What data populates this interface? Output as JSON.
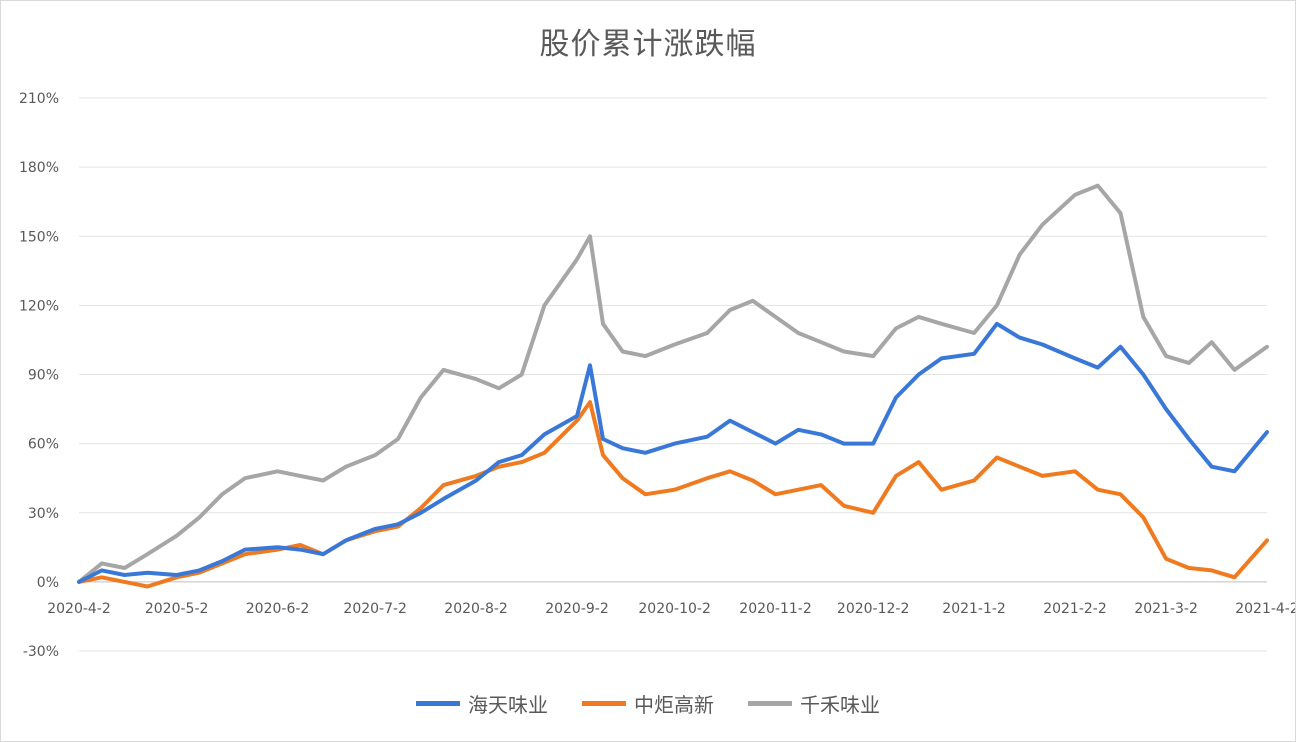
{
  "chart_data": {
    "type": "line",
    "title": "股价累计涨跌幅",
    "xlabel": "",
    "ylabel": "",
    "ylim": [
      -30,
      210
    ],
    "y_ticks": [
      "-30%",
      "0%",
      "30%",
      "60%",
      "90%",
      "120%",
      "150%",
      "180%",
      "210%"
    ],
    "y_tick_values": [
      -30,
      0,
      30,
      60,
      90,
      120,
      150,
      180,
      210
    ],
    "x_ticks": [
      "2020-4-2",
      "2020-5-2",
      "2020-6-2",
      "2020-7-2",
      "2020-8-2",
      "2020-9-2",
      "2020-10-2",
      "2020-11-2",
      "2020-12-2",
      "2021-1-2",
      "2021-2-2",
      "2021-3-2",
      "2021-4-2"
    ],
    "x": [
      "2020-4-2",
      "2020-4-9",
      "2020-4-16",
      "2020-4-23",
      "2020-5-2",
      "2020-5-9",
      "2020-5-16",
      "2020-5-23",
      "2020-6-2",
      "2020-6-9",
      "2020-6-16",
      "2020-6-23",
      "2020-7-2",
      "2020-7-9",
      "2020-7-16",
      "2020-7-23",
      "2020-8-2",
      "2020-8-9",
      "2020-8-16",
      "2020-8-23",
      "2020-9-2",
      "2020-9-6",
      "2020-9-10",
      "2020-9-16",
      "2020-9-23",
      "2020-10-2",
      "2020-10-12",
      "2020-10-19",
      "2020-10-26",
      "2020-11-2",
      "2020-11-9",
      "2020-11-16",
      "2020-11-23",
      "2020-12-2",
      "2020-12-9",
      "2020-12-16",
      "2020-12-23",
      "2021-1-2",
      "2021-1-9",
      "2021-1-16",
      "2021-1-23",
      "2021-2-2",
      "2021-2-9",
      "2021-2-16",
      "2021-2-23",
      "2021-3-2",
      "2021-3-9",
      "2021-3-16",
      "2021-3-23",
      "2021-4-2"
    ],
    "series": [
      {
        "name": "海天味业",
        "color": "#3a78d8",
        "values": [
          0,
          5,
          3,
          4,
          3,
          5,
          9,
          14,
          15,
          14,
          12,
          18,
          23,
          25,
          30,
          36,
          44,
          52,
          55,
          64,
          72,
          94,
          62,
          58,
          56,
          60,
          63,
          70,
          65,
          60,
          66,
          64,
          60,
          60,
          80,
          90,
          97,
          99,
          112,
          106,
          103,
          97,
          93,
          102,
          90,
          75,
          62,
          50,
          48,
          65
        ]
      },
      {
        "name": "中炬高新",
        "color": "#f07a1f",
        "values": [
          0,
          2,
          0,
          -2,
          2,
          4,
          8,
          12,
          14,
          16,
          12,
          18,
          22,
          24,
          32,
          42,
          46,
          50,
          52,
          56,
          70,
          78,
          55,
          45,
          38,
          40,
          45,
          48,
          44,
          38,
          40,
          42,
          33,
          30,
          46,
          52,
          40,
          44,
          54,
          50,
          46,
          48,
          40,
          38,
          28,
          10,
          6,
          5,
          2,
          18
        ]
      },
      {
        "name": "千禾味业",
        "color": "#a6a6a6",
        "values": [
          0,
          8,
          6,
          12,
          20,
          28,
          38,
          45,
          48,
          46,
          44,
          50,
          55,
          62,
          80,
          92,
          88,
          84,
          90,
          120,
          140,
          150,
          112,
          100,
          98,
          103,
          108,
          118,
          122,
          115,
          108,
          104,
          100,
          98,
          110,
          115,
          112,
          108,
          120,
          142,
          155,
          168,
          172,
          160,
          115,
          98,
          95,
          104,
          92,
          102
        ]
      }
    ],
    "legend_position": "bottom",
    "grid": true
  }
}
